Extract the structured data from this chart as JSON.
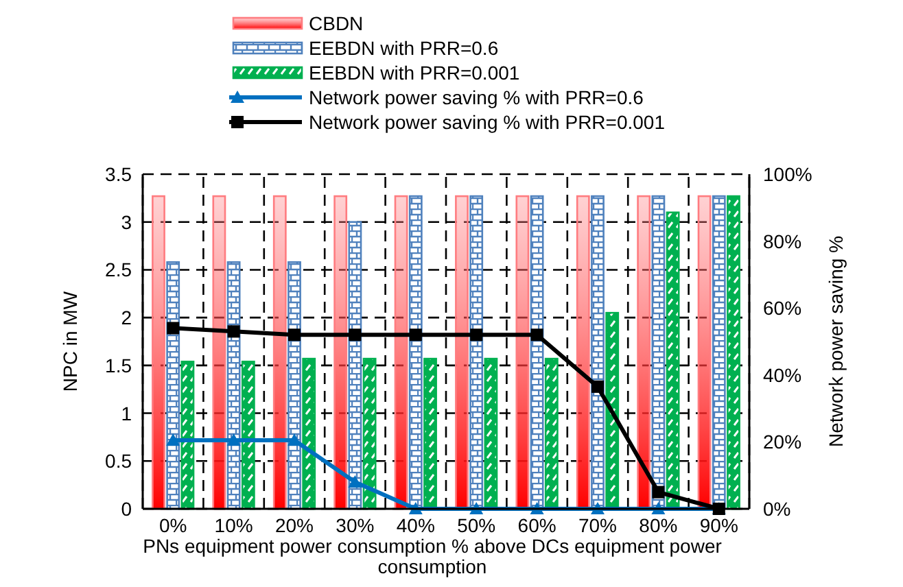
{
  "chart_data": {
    "type": "bar",
    "xlabel": "PNs equipment power consumption % above DCs equipment power consumption",
    "ylabel": "NPC in MW",
    "y2label": "Network power saving %",
    "categories": [
      "0%",
      "10%",
      "20%",
      "30%",
      "40%",
      "50%",
      "60%",
      "70%",
      "80%",
      "90%"
    ],
    "series": [
      {
        "name": "CBDN",
        "color": "#ff7c80",
        "values": [
          3.27,
          3.27,
          3.27,
          3.27,
          3.27,
          3.27,
          3.27,
          3.27,
          3.27,
          3.27
        ]
      },
      {
        "name": "EEBDN with PRR=0.6",
        "color": "#4f81bd",
        "values": [
          2.58,
          2.58,
          2.58,
          3.0,
          3.27,
          3.27,
          3.27,
          3.27,
          3.27,
          3.27
        ]
      },
      {
        "name": "EEBDN with PRR=0.001",
        "color": "#00b050",
        "values": [
          1.54,
          1.54,
          1.57,
          1.57,
          1.57,
          1.57,
          1.57,
          2.05,
          3.1,
          3.27
        ]
      },
      {
        "name": "Network power saving % with PRR=0.6",
        "type": "line",
        "axis": "y2",
        "marker": "triangle",
        "color": "#0070c0",
        "values": [
          20.5,
          20.5,
          20.5,
          8,
          0,
          0,
          0,
          0,
          0,
          0
        ]
      },
      {
        "name": "Network power saving % with PRR=0.001",
        "type": "line",
        "axis": "y2",
        "marker": "square",
        "color": "#000000",
        "values": [
          54,
          53,
          52,
          52,
          52,
          52,
          52,
          36.5,
          5,
          0
        ]
      }
    ],
    "ylim": [
      0,
      3.5
    ],
    "yticks": [
      0,
      0.5,
      1,
      1.5,
      2,
      2.5,
      3,
      3.5
    ],
    "y2lim": [
      0,
      100
    ],
    "y2ticks": [
      {
        "value": 0,
        "label": "0%"
      },
      {
        "value": 20,
        "label": "20%"
      },
      {
        "value": 40,
        "label": "40%"
      },
      {
        "value": 60,
        "label": "60%"
      },
      {
        "value": 80,
        "label": "80%"
      },
      {
        "value": 100,
        "label": "100%"
      }
    ],
    "grid": true,
    "legend": "top",
    "line_style": "solid"
  }
}
